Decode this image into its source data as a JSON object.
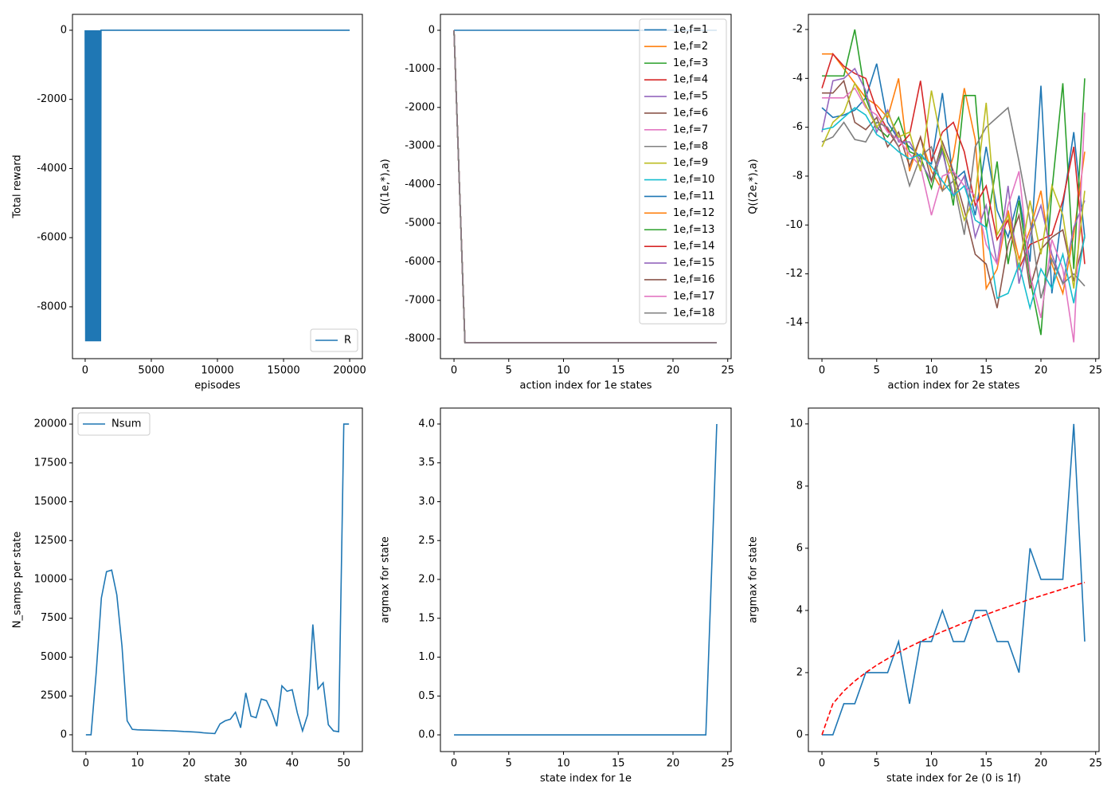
{
  "chart_data": [
    {
      "type": "line",
      "xlabel": "episodes",
      "ylabel": "Total reward",
      "legend": "lower right",
      "x": [
        0,
        40,
        80,
        120,
        160,
        200,
        240,
        280,
        320,
        360,
        400,
        440,
        480,
        520,
        560,
        600,
        640,
        680,
        720,
        760,
        800,
        840,
        880,
        920,
        960,
        1000,
        1040,
        1080,
        1120,
        1160,
        1200,
        20000
      ],
      "series": [
        {
          "name": "R",
          "color": "#1f77b4",
          "values": [
            0,
            -9000,
            0,
            -9000,
            0,
            -9000,
            0,
            -9000,
            0,
            -9000,
            0,
            -9000,
            0,
            -9000,
            0,
            -9000,
            0,
            -9000,
            0,
            -9000,
            0,
            -9000,
            0,
            -9000,
            0,
            -9000,
            0,
            -9000,
            0,
            -9000,
            0,
            0
          ]
        }
      ],
      "xlim": [
        -960,
        20960
      ],
      "xticks": [
        0,
        5000,
        10000,
        15000,
        20000
      ],
      "ylim": [
        -9500,
        460
      ],
      "yticks": [
        -8000,
        -6000,
        -4000,
        -2000,
        0
      ]
    },
    {
      "type": "line",
      "xlabel": "action index for 1e states",
      "ylabel": "Q((1e,*),a)",
      "legend": "upper right",
      "x": [
        0,
        1,
        24
      ],
      "series": [
        {
          "name": "1e,f=1",
          "color": "#1f77b4",
          "values": [
            0,
            0,
            0
          ]
        },
        {
          "name": "1e,f=2",
          "color": "#ff7f0e",
          "values": [
            0,
            -8100,
            -8100
          ]
        },
        {
          "name": "1e,f=3",
          "color": "#2ca02c",
          "values": [
            0,
            -8100,
            -8100
          ]
        },
        {
          "name": "1e,f=4",
          "color": "#d62728",
          "values": [
            0,
            -8100,
            -8100
          ]
        },
        {
          "name": "1e,f=5",
          "color": "#9467bd",
          "values": [
            0,
            -8100,
            -8100
          ]
        },
        {
          "name": "1e,f=6",
          "color": "#8c564b",
          "values": [
            0,
            -8100,
            -8100
          ]
        },
        {
          "name": "1e,f=7",
          "color": "#e377c2",
          "values": [
            0,
            -8100,
            -8100
          ]
        },
        {
          "name": "1e,f=8",
          "color": "#7f7f7f",
          "values": [
            0,
            -8100,
            -8100
          ]
        },
        {
          "name": "1e,f=9",
          "color": "#bcbd22",
          "values": [
            0,
            -8100,
            -8100
          ]
        },
        {
          "name": "1e,f=10",
          "color": "#17becf",
          "values": [
            0,
            -8100,
            -8100
          ]
        },
        {
          "name": "1e,f=11",
          "color": "#1f77b4",
          "values": [
            0,
            -8100,
            -8100
          ]
        },
        {
          "name": "1e,f=12",
          "color": "#ff7f0e",
          "values": [
            0,
            -8100,
            -8100
          ]
        },
        {
          "name": "1e,f=13",
          "color": "#2ca02c",
          "values": [
            0,
            -8100,
            -8100
          ]
        },
        {
          "name": "1e,f=14",
          "color": "#d62728",
          "values": [
            0,
            -8100,
            -8100
          ]
        },
        {
          "name": "1e,f=15",
          "color": "#9467bd",
          "values": [
            0,
            -8100,
            -8100
          ]
        },
        {
          "name": "1e,f=16",
          "color": "#8c564b",
          "values": [
            0,
            -8100,
            -8100
          ]
        },
        {
          "name": "1e,f=17",
          "color": "#e377c2",
          "values": [
            0,
            -8100,
            -8100
          ]
        },
        {
          "name": "1e,f=18",
          "color": "#7f7f7f",
          "values": [
            0,
            -8100,
            -8100
          ]
        }
      ],
      "xlim": [
        -1.24,
        25.31
      ],
      "xticks": [
        0,
        5,
        10,
        15,
        20,
        25
      ],
      "ylim": [
        -8512,
        413
      ],
      "yticks": [
        -8000,
        -7000,
        -6000,
        -5000,
        -4000,
        -3000,
        -2000,
        -1000,
        0
      ]
    },
    {
      "type": "line",
      "xlabel": "action index for 2e states",
      "ylabel": "Q((2e,*),a)",
      "x": [
        0,
        1,
        2,
        3,
        4,
        5,
        6,
        7,
        8,
        9,
        10,
        11,
        12,
        13,
        14,
        15,
        16,
        17,
        18,
        19,
        20,
        21,
        22,
        23,
        24
      ],
      "series": [
        {
          "color": "#1f77b4",
          "values": [
            -5.2,
            -5.6,
            -5.5,
            -5.3,
            -4.8,
            -3.4,
            -5.8,
            -6.5,
            -6.8,
            -7.2,
            -7.5,
            -4.6,
            -8.2,
            -7.8,
            -9.6,
            -6.8,
            -9.4,
            -10.5,
            -8.8,
            -11.5,
            -4.3,
            -12.8,
            -9.2,
            -6.2,
            -10.5
          ]
        },
        {
          "color": "#ff7f0e",
          "values": [
            -3.0,
            -3.0,
            -3.6,
            -4.2,
            -4.8,
            -5.1,
            -5.6,
            -4.0,
            -7.8,
            -6.4,
            -7.8,
            -8.6,
            -7.2,
            -4.4,
            -6.5,
            -12.6,
            -11.8,
            -9.4,
            -11.4,
            -10.2,
            -8.6,
            -11.6,
            -12.8,
            -10.4,
            -7.0
          ]
        },
        {
          "color": "#2ca02c",
          "values": [
            -3.9,
            -3.9,
            -3.9,
            -2.0,
            -4.8,
            -6.0,
            -6.4,
            -5.6,
            -7.0,
            -7.2,
            -8.5,
            -6.8,
            -9.2,
            -4.7,
            -4.7,
            -10.2,
            -7.4,
            -11.6,
            -9.0,
            -12.2,
            -14.5,
            -8.6,
            -4.2,
            -11.8,
            -4.0
          ]
        },
        {
          "color": "#d62728",
          "values": [
            -4.4,
            -3.0,
            -3.5,
            -3.8,
            -4.0,
            -5.3,
            -6.1,
            -6.8,
            -6.3,
            -4.1,
            -7.4,
            -6.2,
            -5.8,
            -7.0,
            -9.2,
            -8.4,
            -10.6,
            -9.8,
            -11.8,
            -10.8,
            -10.6,
            -10.4,
            -9.0,
            -6.8,
            -11.6
          ]
        },
        {
          "color": "#9467bd",
          "values": [
            -6.2,
            -4.1,
            -4.0,
            -3.6,
            -4.5,
            -6.2,
            -5.3,
            -6.6,
            -6.6,
            -7.4,
            -8.2,
            -7.0,
            -8.8,
            -8.0,
            -10.5,
            -9.2,
            -11.6,
            -8.4,
            -12.4,
            -10.4,
            -9.2,
            -11.2,
            -12.4,
            -10.1,
            -9.0
          ]
        },
        {
          "color": "#8c564b",
          "values": [
            -4.6,
            -4.6,
            -4.1,
            -5.8,
            -6.1,
            -5.6,
            -6.8,
            -6.2,
            -7.6,
            -6.4,
            -8.2,
            -6.6,
            -7.8,
            -9.4,
            -11.2,
            -11.6,
            -13.4,
            -10.8,
            -9.6,
            -12.6,
            -11.0,
            -10.5,
            -10.2,
            -12.3,
            -10.5
          ]
        },
        {
          "color": "#e377c2",
          "values": [
            -4.8,
            -4.8,
            -4.8,
            -4.4,
            -5.2,
            -5.5,
            -6.2,
            -6.5,
            -7.1,
            -7.6,
            -9.6,
            -8.0,
            -7.8,
            -8.4,
            -8.8,
            -10.8,
            -11.6,
            -9.2,
            -7.8,
            -12.0,
            -13.8,
            -10.6,
            -11.8,
            -14.8,
            -5.4
          ]
        },
        {
          "color": "#7f7f7f",
          "values": [
            -6.6,
            -6.4,
            -5.8,
            -6.5,
            -6.6,
            -5.8,
            -6.0,
            -6.8,
            -8.4,
            -7.2,
            -6.8,
            -8.6,
            -8.2,
            -10.4,
            -6.8,
            -6.0,
            -5.6,
            -5.2,
            -7.4,
            -9.8,
            -13.0,
            -11.4,
            -12.4,
            -12.0,
            -12.5
          ]
        },
        {
          "color": "#bcbd22",
          "values": [
            -6.8,
            -5.8,
            -5.4,
            -4.2,
            -5.1,
            -6.0,
            -5.4,
            -6.4,
            -6.2,
            -7.8,
            -4.5,
            -6.8,
            -8.1,
            -9.8,
            -8.8,
            -5.0,
            -10.4,
            -9.6,
            -11.8,
            -9.0,
            -11.2,
            -8.4,
            -9.6,
            -12.6,
            -8.6
          ]
        },
        {
          "color": "#17becf",
          "values": [
            -6.1,
            -6.0,
            -5.6,
            -5.2,
            -5.5,
            -6.3,
            -6.6,
            -7.0,
            -7.3,
            -7.1,
            -7.6,
            -8.2,
            -8.8,
            -8.4,
            -9.8,
            -10.1,
            -13.0,
            -12.8,
            -11.6,
            -13.4,
            -11.8,
            -12.6,
            -11.2,
            -13.2,
            -10.4
          ]
        }
      ],
      "xlim": [
        -1.24,
        25.31
      ],
      "xticks": [
        0,
        5,
        10,
        15,
        20,
        25
      ],
      "ylim": [
        -15.47,
        -1.38
      ],
      "yticks": [
        -14,
        -12,
        -10,
        -8,
        -6,
        -4,
        -2
      ]
    },
    {
      "type": "line",
      "xlabel": "state",
      "ylabel": "N_samps per state",
      "legend": "upper left",
      "x": [
        0,
        1,
        2,
        3,
        4,
        5,
        6,
        7,
        8,
        9,
        10,
        11,
        12,
        13,
        14,
        15,
        16,
        17,
        18,
        19,
        20,
        21,
        22,
        23,
        24,
        25,
        26,
        27,
        28,
        29,
        30,
        31,
        32,
        33,
        34,
        35,
        36,
        37,
        38,
        39,
        40,
        41,
        42,
        43,
        44,
        45,
        46,
        47,
        48,
        49,
        50,
        51
      ],
      "series": [
        {
          "name": "Nsum",
          "color": "#1f77b4",
          "values": [
            0,
            0,
            4000,
            8800,
            10500,
            10600,
            9000,
            5700,
            900,
            350,
            320,
            310,
            300,
            290,
            280,
            270,
            260,
            250,
            230,
            210,
            200,
            180,
            160,
            120,
            100,
            80,
            700,
            900,
            1000,
            1450,
            450,
            2700,
            1200,
            1100,
            2300,
            2200,
            1500,
            550,
            3150,
            2800,
            2900,
            1400,
            250,
            1300,
            7100,
            2950,
            3350,
            650,
            250,
            200,
            20000,
            20000
          ]
        }
      ],
      "xlim": [
        -2.6,
        53.6
      ],
      "xticks": [
        0,
        10,
        20,
        30,
        40,
        50
      ],
      "ylim": [
        -1080,
        21030
      ],
      "yticks": [
        0,
        2500,
        5000,
        7500,
        10000,
        12500,
        15000,
        17500,
        20000
      ]
    },
    {
      "type": "line",
      "xlabel": "state index for 1e",
      "ylabel": "argmax for state",
      "x": [
        0,
        1,
        2,
        3,
        4,
        5,
        6,
        7,
        8,
        9,
        10,
        11,
        12,
        13,
        14,
        15,
        16,
        17,
        18,
        19,
        20,
        21,
        22,
        23,
        24
      ],
      "series": [
        {
          "color": "#1f77b4",
          "values": [
            0,
            0,
            0,
            0,
            0,
            0,
            0,
            0,
            0,
            0,
            0,
            0,
            0,
            0,
            0,
            0,
            0,
            0,
            0,
            0,
            0,
            0,
            0,
            0,
            4
          ]
        }
      ],
      "xlim": [
        -1.24,
        25.31
      ],
      "xticks": [
        0,
        5,
        10,
        15,
        20,
        25
      ],
      "ylim": [
        -0.215,
        4.205
      ],
      "yticks": [
        {
          "value": 0,
          "label": "0.0"
        },
        0.5,
        {
          "value": 1,
          "label": "1.0"
        },
        1.5,
        {
          "value": 2,
          "label": "2.0"
        },
        2.5,
        {
          "value": 3,
          "label": "3.0"
        },
        3.5,
        {
          "value": 4,
          "label": "4.0"
        }
      ]
    },
    {
      "type": "line",
      "xlabel": "state index for 2e (0 is 1f)",
      "ylabel": "argmax for state",
      "x": [
        0,
        1,
        2,
        3,
        4,
        5,
        6,
        7,
        8,
        9,
        10,
        11,
        12,
        13,
        14,
        15,
        16,
        17,
        18,
        19,
        20,
        21,
        22,
        23,
        24
      ],
      "series": [
        {
          "color": "#1f77b4",
          "values": [
            0,
            0,
            1,
            1,
            2,
            2,
            2,
            3,
            1,
            3,
            3,
            4,
            3,
            3,
            4,
            4,
            3,
            3,
            2,
            6,
            5,
            5,
            5,
            10,
            3
          ]
        },
        {
          "color": "#ff0000",
          "linestyle": "dashed",
          "values": [
            0,
            1,
            1.41,
            1.73,
            2,
            2.24,
            2.45,
            2.65,
            2.83,
            3,
            3.16,
            3.32,
            3.46,
            3.61,
            3.74,
            3.87,
            4,
            4.12,
            4.24,
            4.36,
            4.47,
            4.58,
            4.69,
            4.8,
            4.9
          ]
        }
      ],
      "xlim": [
        -1.24,
        25.31
      ],
      "xticks": [
        0,
        5,
        10,
        15,
        20,
        25
      ],
      "ylim": [
        -0.54,
        10.51
      ],
      "yticks": [
        0,
        2,
        4,
        6,
        8,
        10
      ]
    }
  ]
}
